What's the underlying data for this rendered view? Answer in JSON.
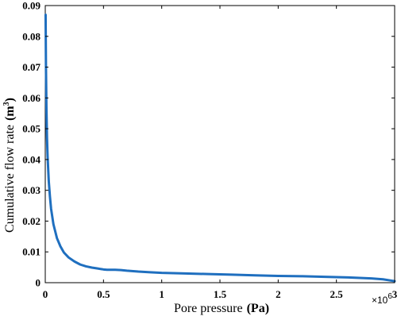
{
  "chart_data": {
    "type": "line",
    "title": "",
    "xlabel": "Pore pressure",
    "xlabel_unit": "(Pa)",
    "ylabel": "Cumulative flow rate",
    "ylabel_unit": "(m",
    "ylabel_unit_sup": "3",
    "ylabel_unit_close": ")",
    "x_multiplier_label": "×10",
    "x_multiplier_exp": "6",
    "xlim": [
      0,
      3
    ],
    "ylim": [
      0,
      0.09
    ],
    "xticks": [
      0,
      0.5,
      1,
      1.5,
      2,
      2.5,
      3
    ],
    "xtick_labels": [
      "0",
      "0.5",
      "1",
      "1.5",
      "2",
      "2.5",
      "3"
    ],
    "yticks": [
      0,
      0.01,
      0.02,
      0.03,
      0.04,
      0.05,
      0.06,
      0.07,
      0.08,
      0.09
    ],
    "ytick_labels": [
      "0",
      "0.01",
      "0.02",
      "0.03",
      "0.04",
      "0.05",
      "0.06",
      "0.07",
      "0.08",
      "0.09"
    ],
    "grid": false,
    "line_color": "#1f6fbf",
    "series": [
      {
        "x": [
          0.003,
          0.006,
          0.01,
          0.015,
          0.02,
          0.03,
          0.04,
          0.05,
          0.07,
          0.1,
          0.13,
          0.16,
          0.2,
          0.25,
          0.3,
          0.35,
          0.4,
          0.45,
          0.5,
          0.53,
          0.6,
          0.65,
          0.7,
          0.8,
          0.9,
          1.0,
          1.2,
          1.4,
          1.6,
          1.8,
          2.0,
          2.2,
          2.4,
          2.6,
          2.8,
          2.9,
          3.0
        ],
        "y": [
          0.087,
          0.07,
          0.057,
          0.047,
          0.041,
          0.033,
          0.028,
          0.024,
          0.019,
          0.0145,
          0.0118,
          0.0098,
          0.0082,
          0.0069,
          0.0059,
          0.0053,
          0.0049,
          0.0046,
          0.0043,
          0.0042,
          0.0042,
          0.0041,
          0.0039,
          0.0036,
          0.0034,
          0.0032,
          0.003,
          0.0028,
          0.0026,
          0.0024,
          0.0022,
          0.0021,
          0.0019,
          0.0017,
          0.0014,
          0.0011,
          0.0005
        ]
      }
    ]
  }
}
